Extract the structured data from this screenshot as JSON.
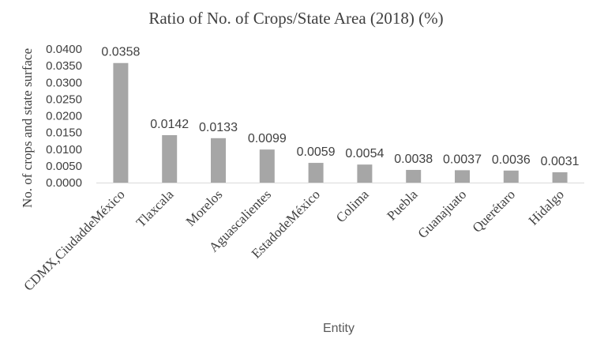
{
  "chart_data": {
    "type": "bar",
    "title": "Ratio of No. of Crops/State Area (2018) (%)",
    "xlabel": "Entity",
    "ylabel": "No. of crops and state surface",
    "categories": [
      "CDMX,CiudaddeMéxico",
      "Tlaxcala",
      "Morelos",
      "Aguascalientes",
      "EstadodeMéxico",
      "Colima",
      "Puebla",
      "Guanajuato",
      "Querétaro",
      "Hidalgo"
    ],
    "values": [
      0.0358,
      0.0142,
      0.0133,
      0.0099,
      0.0059,
      0.0054,
      0.0038,
      0.0037,
      0.0036,
      0.0031
    ],
    "data_labels": [
      "0.0358",
      "0.0142",
      "0.0133",
      "0.0099",
      "0.0059",
      "0.0054",
      "0.0038",
      "0.0037",
      "0.0036",
      "0.0031"
    ],
    "yticks": [
      "0.0000",
      "0.0050",
      "0.0100",
      "0.0150",
      "0.0200",
      "0.0250",
      "0.0300",
      "0.0350",
      "0.0400"
    ],
    "ylim": [
      0,
      0.04
    ],
    "grid": false,
    "legend": "none",
    "bar_color": "#a6a6a6",
    "text_color": "#404040",
    "axis_color": "#d9d9d9"
  }
}
